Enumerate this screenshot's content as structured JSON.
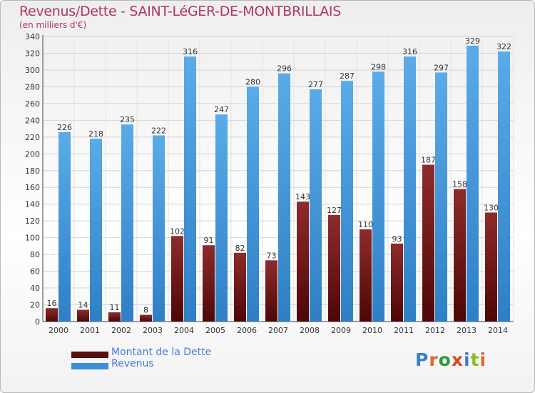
{
  "title": "Revenus/Dette - SAINT-LéGER-DE-MONTBRILLAIS",
  "subtitle": "(en milliers d'€)",
  "colors": {
    "dette": "#6b1010",
    "revenus": "#3a90d8"
  },
  "legend": [
    {
      "label": "Montant de la Dette",
      "color": "#6b1010"
    },
    {
      "label": "Revenus",
      "color": "#3a90d8"
    }
  ],
  "logo": {
    "text": "Proxiti"
  },
  "chart_data": {
    "type": "bar",
    "categories": [
      "2000",
      "2001",
      "2002",
      "2003",
      "2004",
      "2005",
      "2006",
      "2007",
      "2008",
      "2009",
      "2010",
      "2011",
      "2012",
      "2013",
      "2014"
    ],
    "series": [
      {
        "name": "Montant de la Dette",
        "values": [
          16,
          14,
          11,
          8,
          102,
          91,
          82,
          73,
          143,
          127,
          110,
          93,
          187,
          158,
          130
        ]
      },
      {
        "name": "Revenus",
        "values": [
          226,
          218,
          235,
          222,
          316,
          247,
          280,
          296,
          277,
          287,
          298,
          316,
          297,
          329,
          322
        ]
      }
    ],
    "ylim": [
      0,
      340
    ],
    "yticks": [
      0,
      20,
      40,
      60,
      80,
      100,
      120,
      140,
      160,
      180,
      200,
      220,
      240,
      260,
      280,
      300,
      320,
      340
    ],
    "grid": true,
    "legend_position": "bottom-left"
  }
}
